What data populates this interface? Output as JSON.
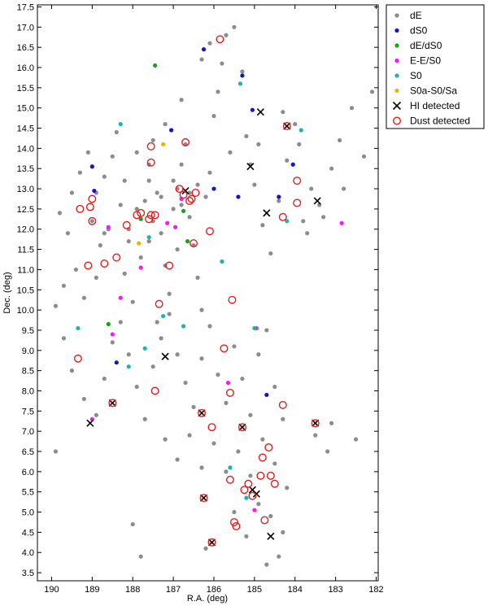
{
  "chart_data": {
    "type": "scatter",
    "title": "",
    "xlabel": "R.A. (deg)",
    "ylabel": "Dec. (deg)",
    "xlim": [
      190.35,
      181.95
    ],
    "ylim": [
      3.3,
      17.55
    ],
    "x_inverted": true,
    "x_ticks": [
      190,
      189,
      188,
      187,
      186,
      185,
      184,
      183,
      182
    ],
    "x_tick_labels": [
      "190",
      "189",
      "188",
      "187",
      "186",
      "185",
      "184",
      "183",
      "182"
    ],
    "y_ticks": [
      3.5,
      4.0,
      4.5,
      5.0,
      5.5,
      6.0,
      6.5,
      7.0,
      7.5,
      8.0,
      8.5,
      9.0,
      9.5,
      10.0,
      10.5,
      11.0,
      11.5,
      12.0,
      12.5,
      13.0,
      13.5,
      14.0,
      14.5,
      15.0,
      15.5,
      16.0,
      16.5,
      17.0,
      17.5
    ],
    "y_tick_labels": [
      "3.5",
      "4.0",
      "4.5",
      "5.0",
      "5.5",
      "6.0",
      "6.5",
      "7.0",
      "7.5",
      "8.0",
      "8.5",
      "9.0",
      "9.5",
      "10.0",
      "10.5",
      "11.0",
      "11.5",
      "12.0",
      "12.5",
      "13.0",
      "13.5",
      "14.0",
      "14.5",
      "15.0",
      "15.5",
      "16.0",
      "16.5",
      "17.0",
      "17.5"
    ],
    "grid": false,
    "legend_position": "outside-top-right",
    "series": [
      {
        "name": "dE",
        "color": "#8c8c8c",
        "marker": "dot",
        "points": [
          [
            189.8,
            12.4
          ],
          [
            189.6,
            11.9
          ],
          [
            189.5,
            12.9
          ],
          [
            189.3,
            13.4
          ],
          [
            189.1,
            13.9
          ],
          [
            189.4,
            11.0
          ],
          [
            189.7,
            10.6
          ],
          [
            189.2,
            10.3
          ],
          [
            188.9,
            10.8
          ],
          [
            188.8,
            11.6
          ],
          [
            188.6,
            12.0
          ],
          [
            188.9,
            12.9
          ],
          [
            188.7,
            13.3
          ],
          [
            188.5,
            13.8
          ],
          [
            188.4,
            14.4
          ],
          [
            188.3,
            12.6
          ],
          [
            188.1,
            11.7
          ],
          [
            188.2,
            10.9
          ],
          [
            188.0,
            10.2
          ],
          [
            187.8,
            11.3
          ],
          [
            187.7,
            12.7
          ],
          [
            187.6,
            13.2
          ],
          [
            187.9,
            13.9
          ],
          [
            187.5,
            14.2
          ],
          [
            187.4,
            12.9
          ],
          [
            187.3,
            11.9
          ],
          [
            187.2,
            11.1
          ],
          [
            187.1,
            10.4
          ],
          [
            187.4,
            9.7
          ],
          [
            187.0,
            12.5
          ],
          [
            186.9,
            13.0
          ],
          [
            186.8,
            13.6
          ],
          [
            186.7,
            14.1
          ],
          [
            186.6,
            12.3
          ],
          [
            186.5,
            11.6
          ],
          [
            186.4,
            10.8
          ],
          [
            186.3,
            10.0
          ],
          [
            186.2,
            12.8
          ],
          [
            186.1,
            13.4
          ],
          [
            186.0,
            14.8
          ],
          [
            185.9,
            15.4
          ],
          [
            185.8,
            16.1
          ],
          [
            185.7,
            16.8
          ],
          [
            185.5,
            17.0
          ],
          [
            185.3,
            15.9
          ],
          [
            185.2,
            14.3
          ],
          [
            185.0,
            13.1
          ],
          [
            184.8,
            12.1
          ],
          [
            184.6,
            11.4
          ],
          [
            184.4,
            12.7
          ],
          [
            184.2,
            13.7
          ],
          [
            184.0,
            14.6
          ],
          [
            183.8,
            12.2
          ],
          [
            183.6,
            13.0
          ],
          [
            183.3,
            12.3
          ],
          [
            183.1,
            13.5
          ],
          [
            182.9,
            14.2
          ],
          [
            182.6,
            15.0
          ],
          [
            182.3,
            13.8
          ],
          [
            182.1,
            15.4
          ],
          [
            189.9,
            10.1
          ],
          [
            189.7,
            9.3
          ],
          [
            189.5,
            8.5
          ],
          [
            189.2,
            7.8
          ],
          [
            188.9,
            7.4
          ],
          [
            188.7,
            8.3
          ],
          [
            188.5,
            9.2
          ],
          [
            188.3,
            9.7
          ],
          [
            188.1,
            8.9
          ],
          [
            187.9,
            8.1
          ],
          [
            187.7,
            7.3
          ],
          [
            187.5,
            8.6
          ],
          [
            187.3,
            9.3
          ],
          [
            187.1,
            9.9
          ],
          [
            186.9,
            8.9
          ],
          [
            186.7,
            8.2
          ],
          [
            186.5,
            7.6
          ],
          [
            186.3,
            8.8
          ],
          [
            186.1,
            9.6
          ],
          [
            185.9,
            8.4
          ],
          [
            185.7,
            7.7
          ],
          [
            185.5,
            9.1
          ],
          [
            185.3,
            8.3
          ],
          [
            185.1,
            7.4
          ],
          [
            184.9,
            8.9
          ],
          [
            184.7,
            9.5
          ],
          [
            184.5,
            8.1
          ],
          [
            184.3,
            7.3
          ],
          [
            187.2,
            6.8
          ],
          [
            186.9,
            6.3
          ],
          [
            186.6,
            6.9
          ],
          [
            186.3,
            6.1
          ],
          [
            186.0,
            6.7
          ],
          [
            185.7,
            6.0
          ],
          [
            185.4,
            6.5
          ],
          [
            185.1,
            5.9
          ],
          [
            184.8,
            6.8
          ],
          [
            184.5,
            6.2
          ],
          [
            184.2,
            5.6
          ],
          [
            184.9,
            5.2
          ],
          [
            184.6,
            4.9
          ],
          [
            184.3,
            4.5
          ],
          [
            185.2,
            4.4
          ],
          [
            185.5,
            5.0
          ],
          [
            184.4,
            3.9
          ],
          [
            184.7,
            3.7
          ],
          [
            186.2,
            4.1
          ],
          [
            187.8,
            3.9
          ],
          [
            188.0,
            4.7
          ],
          [
            189.9,
            6.5
          ],
          [
            183.5,
            6.9
          ],
          [
            183.1,
            7.2
          ],
          [
            182.5,
            6.8
          ],
          [
            183.2,
            6.5
          ],
          [
            189.0,
            12.2
          ],
          [
            188.7,
            11.9
          ],
          [
            188.2,
            13.2
          ],
          [
            187.6,
            13.6
          ],
          [
            187.2,
            14.6
          ],
          [
            186.8,
            15.2
          ],
          [
            186.3,
            16.2
          ],
          [
            186.1,
            16.6
          ],
          [
            185.6,
            13.9
          ],
          [
            185.1,
            13.6
          ],
          [
            184.9,
            14.1
          ],
          [
            184.3,
            14.9
          ],
          [
            183.9,
            14.1
          ],
          [
            183.7,
            11.9
          ],
          [
            183.4,
            12.6
          ],
          [
            182.8,
            13.0
          ],
          [
            187.5,
            12.2
          ],
          [
            187.3,
            12.8
          ],
          [
            187.0,
            13.2
          ],
          [
            186.8,
            12.6
          ],
          [
            186.6,
            12.9
          ],
          [
            186.4,
            13.1
          ],
          [
            187.9,
            12.5
          ],
          [
            188.1,
            12.0
          ],
          [
            187.6,
            11.7
          ],
          [
            186.9,
            11.5
          ]
        ]
      },
      {
        "name": "dS0",
        "color": "#1414c8",
        "marker": "dot",
        "points": [
          [
            189.0,
            13.55
          ],
          [
            188.95,
            12.95
          ],
          [
            188.4,
            8.7
          ],
          [
            187.05,
            14.45
          ],
          [
            186.25,
            16.45
          ],
          [
            185.3,
            15.8
          ],
          [
            185.05,
            14.95
          ],
          [
            184.4,
            12.8
          ],
          [
            184.05,
            13.6
          ],
          [
            184.7,
            7.9
          ],
          [
            186.0,
            13.0
          ],
          [
            185.4,
            12.8
          ]
        ]
      },
      {
        "name": "dE/dS0",
        "color": "#1aa01a",
        "marker": "dot",
        "points": [
          [
            187.45,
            16.05
          ],
          [
            187.8,
            12.25
          ],
          [
            186.75,
            12.45
          ],
          [
            188.6,
            9.65
          ],
          [
            186.65,
            11.7
          ]
        ]
      },
      {
        "name": "E-E/S0",
        "color": "#ff14ff",
        "marker": "dot",
        "points": [
          [
            189.0,
            7.3
          ],
          [
            188.5,
            9.4
          ],
          [
            188.3,
            10.3
          ],
          [
            187.15,
            12.15
          ],
          [
            186.95,
            12.05
          ],
          [
            187.8,
            11.05
          ],
          [
            185.65,
            8.2
          ],
          [
            185.0,
            5.05
          ],
          [
            182.85,
            12.15
          ],
          [
            184.95,
            9.55
          ],
          [
            188.6,
            12.05
          ],
          [
            186.8,
            12.75
          ]
        ]
      },
      {
        "name": "S0",
        "color": "#1ab4b4",
        "marker": "dot",
        "points": [
          [
            189.35,
            9.55
          ],
          [
            188.3,
            14.6
          ],
          [
            187.7,
            9.05
          ],
          [
            187.25,
            9.85
          ],
          [
            186.75,
            9.6
          ],
          [
            185.8,
            11.2
          ],
          [
            185.35,
            15.6
          ],
          [
            184.2,
            12.2
          ],
          [
            183.85,
            14.45
          ],
          [
            185.0,
            9.55
          ],
          [
            185.6,
            6.1
          ],
          [
            185.2,
            5.35
          ],
          [
            188.1,
            8.6
          ],
          [
            187.6,
            11.8
          ]
        ]
      },
      {
        "name": "S0a-S0/Sa",
        "color": "#f0b400",
        "marker": "dot",
        "points": [
          [
            187.85,
            11.65
          ],
          [
            187.25,
            14.1
          ]
        ]
      },
      {
        "name": "HI detected",
        "color": "#000000",
        "marker": "x",
        "points": [
          [
            189.05,
            7.2
          ],
          [
            188.5,
            7.7
          ],
          [
            187.2,
            8.85
          ],
          [
            186.3,
            7.45
          ],
          [
            186.25,
            5.35
          ],
          [
            186.05,
            4.25
          ],
          [
            185.3,
            7.1
          ],
          [
            184.95,
            5.45
          ],
          [
            185.05,
            5.55
          ],
          [
            184.6,
            4.4
          ],
          [
            183.5,
            7.2
          ],
          [
            184.2,
            14.55
          ],
          [
            184.85,
            14.9
          ],
          [
            185.1,
            13.55
          ],
          [
            184.7,
            12.4
          ],
          [
            183.45,
            12.7
          ],
          [
            186.7,
            12.95
          ]
        ]
      },
      {
        "name": "Dust detected",
        "color": "#e61e1e",
        "marker": "ring",
        "points": [
          [
            189.35,
            8.8
          ],
          [
            188.5,
            7.7
          ],
          [
            186.3,
            7.45
          ],
          [
            186.25,
            5.35
          ],
          [
            186.05,
            4.25
          ],
          [
            185.3,
            7.1
          ],
          [
            183.5,
            7.2
          ],
          [
            184.2,
            14.55
          ],
          [
            186.5,
            11.65
          ],
          [
            187.1,
            11.1
          ],
          [
            187.55,
            12.35
          ],
          [
            186.1,
            11.95
          ],
          [
            184.3,
            12.3
          ],
          [
            183.95,
            12.65
          ],
          [
            183.95,
            13.2
          ],
          [
            185.55,
            10.25
          ],
          [
            185.75,
            9.05
          ],
          [
            186.05,
            7.1
          ],
          [
            185.6,
            7.95
          ],
          [
            187.45,
            8.0
          ],
          [
            187.55,
            13.65
          ],
          [
            187.45,
            12.35
          ],
          [
            187.6,
            12.25
          ],
          [
            187.8,
            12.4
          ],
          [
            189.0,
            12.75
          ],
          [
            189.05,
            12.55
          ],
          [
            189.3,
            12.5
          ],
          [
            189.0,
            12.2
          ],
          [
            188.7,
            11.15
          ],
          [
            189.1,
            11.1
          ],
          [
            188.4,
            11.3
          ],
          [
            188.15,
            12.1
          ],
          [
            187.9,
            12.35
          ],
          [
            187.55,
            14.05
          ],
          [
            187.35,
            10.15
          ],
          [
            186.85,
            13.0
          ],
          [
            186.55,
            12.75
          ],
          [
            186.45,
            12.9
          ],
          [
            186.7,
            14.15
          ],
          [
            185.85,
            16.7
          ],
          [
            185.6,
            5.8
          ],
          [
            184.3,
            7.65
          ],
          [
            184.5,
            5.7
          ],
          [
            184.6,
            5.9
          ],
          [
            184.65,
            6.6
          ],
          [
            184.8,
            6.35
          ],
          [
            184.85,
            5.9
          ],
          [
            185.15,
            5.7
          ],
          [
            185.05,
            5.4
          ],
          [
            185.25,
            5.55
          ],
          [
            185.5,
            4.75
          ],
          [
            185.45,
            4.65
          ],
          [
            184.75,
            4.8
          ],
          [
            186.6,
            12.7
          ],
          [
            186.75,
            12.85
          ]
        ]
      }
    ]
  }
}
